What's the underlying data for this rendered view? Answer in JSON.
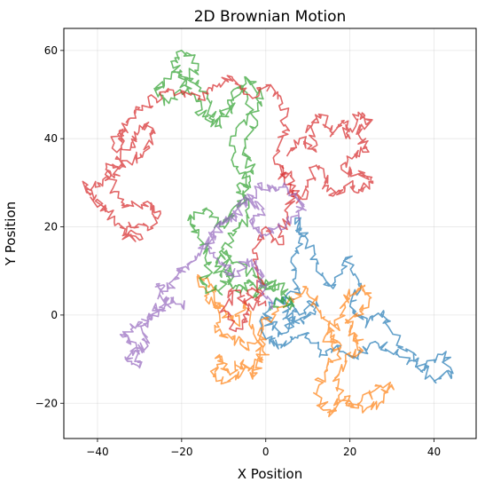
{
  "chart_data": {
    "type": "line",
    "title": "2D Brownian Motion",
    "xlabel": "X Position",
    "ylabel": "Y Position",
    "xlim": [
      -48,
      50
    ],
    "ylim": [
      -28,
      65
    ],
    "xticks": [
      -40,
      -20,
      0,
      20,
      40
    ],
    "yticks": [
      -20,
      0,
      20,
      40,
      60
    ],
    "xtick_labels": [
      "−40",
      "−20",
      "0",
      "20",
      "40"
    ],
    "ytick_labels": [
      "−20",
      "0",
      "20",
      "40",
      "60"
    ],
    "grid": true,
    "legend": "none",
    "series": [
      {
        "color": "#1f77b4",
        "alpha": 0.7,
        "waypoints": [
          [
            0,
            0
          ],
          [
            3,
            -4
          ],
          [
            6,
            -2
          ],
          [
            4,
            3
          ],
          [
            8,
            6
          ],
          [
            6,
            12
          ],
          [
            9,
            18
          ],
          [
            7,
            22
          ],
          [
            10,
            17
          ],
          [
            12,
            10
          ],
          [
            16,
            6
          ],
          [
            19,
            13
          ],
          [
            22,
            7
          ],
          [
            20,
            2
          ],
          [
            24,
            -2
          ],
          [
            28,
            1
          ],
          [
            30,
            -4
          ],
          [
            34,
            -8
          ],
          [
            38,
            -12
          ],
          [
            42,
            -9
          ],
          [
            44,
            -13
          ],
          [
            40,
            -15
          ],
          [
            36,
            -11
          ],
          [
            31,
            -9
          ],
          [
            26,
            -6
          ],
          [
            22,
            -10
          ],
          [
            17,
            -7
          ],
          [
            13,
            -9
          ],
          [
            10,
            -4
          ],
          [
            6,
            -6
          ],
          [
            2,
            -7
          ],
          [
            -1,
            -4
          ],
          [
            1,
            2
          ],
          [
            5,
            4
          ],
          [
            8,
            0
          ],
          [
            12,
            3
          ],
          [
            9,
            -2
          ],
          [
            4,
            -1
          ]
        ]
      },
      {
        "color": "#ff7f0e",
        "alpha": 0.7,
        "waypoints": [
          [
            -1,
            -3
          ],
          [
            -4,
            -8
          ],
          [
            -8,
            -5
          ],
          [
            -12,
            -4
          ],
          [
            -10,
            2
          ],
          [
            -14,
            4
          ],
          [
            -16,
            9
          ],
          [
            -13,
            7
          ],
          [
            -11,
            2
          ],
          [
            -7,
            -2
          ],
          [
            -5,
            3
          ],
          [
            -2,
            -6
          ],
          [
            -1,
            -10
          ],
          [
            -3,
            -14
          ],
          [
            -6,
            -11
          ],
          [
            -9,
            -13
          ],
          [
            -11,
            -9
          ],
          [
            -12,
            -14
          ],
          [
            -9,
            -15
          ],
          [
            -4,
            -12
          ],
          [
            0,
            -9
          ],
          [
            -1,
            -3
          ],
          [
            3,
            1
          ],
          [
            6,
            4
          ],
          [
            10,
            6
          ],
          [
            13,
            1
          ],
          [
            15,
            -4
          ],
          [
            17,
            -9
          ],
          [
            14,
            -13
          ],
          [
            12,
            -18
          ],
          [
            15,
            -23
          ],
          [
            17,
            -19
          ],
          [
            22,
            -20
          ],
          [
            26,
            -17
          ],
          [
            30,
            -16
          ],
          [
            27,
            -20
          ],
          [
            23,
            -22
          ],
          [
            19,
            -20
          ],
          [
            16,
            -15
          ],
          [
            19,
            -10
          ],
          [
            23,
            -8
          ],
          [
            21,
            -4
          ],
          [
            19,
            -1
          ],
          [
            23,
            1
          ],
          [
            25,
            5
          ],
          [
            22,
            6
          ],
          [
            19,
            3
          ],
          [
            17,
            -2
          ],
          [
            14,
            -5
          ],
          [
            18,
            -7
          ]
        ]
      },
      {
        "color": "#2ca02c",
        "alpha": 0.7,
        "waypoints": [
          [
            1,
            1
          ],
          [
            4,
            4
          ],
          [
            6,
            2
          ],
          [
            3,
            7
          ],
          [
            0,
            6
          ],
          [
            -3,
            9
          ],
          [
            -7,
            12
          ],
          [
            -10,
            14
          ],
          [
            -8,
            9
          ],
          [
            -11,
            5
          ],
          [
            -15,
            7
          ],
          [
            -13,
            12
          ],
          [
            -16,
            18
          ],
          [
            -18,
            22
          ],
          [
            -14,
            24
          ],
          [
            -11,
            20
          ],
          [
            -8,
            23
          ],
          [
            -5,
            26
          ],
          [
            -4,
            30
          ],
          [
            -8,
            35
          ],
          [
            -7,
            42
          ],
          [
            -3,
            46
          ],
          [
            -1,
            50
          ],
          [
            -5,
            54
          ],
          [
            -9,
            48
          ],
          [
            -12,
            44
          ],
          [
            -14,
            49
          ],
          [
            -18,
            53
          ],
          [
            -22,
            56
          ],
          [
            -20,
            60
          ],
          [
            -16,
            57
          ],
          [
            -19,
            52
          ],
          [
            -23,
            48
          ],
          [
            -26,
            51
          ],
          [
            -21,
            55
          ],
          [
            -17,
            50
          ],
          [
            -15,
            45
          ],
          [
            -11,
            43
          ],
          [
            -8,
            47
          ],
          [
            -6,
            52
          ],
          [
            -2,
            44
          ],
          [
            -5,
            38
          ],
          [
            -3,
            32
          ],
          [
            -6,
            28
          ],
          [
            -4,
            22
          ],
          [
            -7,
            19
          ],
          [
            -10,
            15
          ],
          [
            -12,
            11
          ],
          [
            -9,
            8
          ],
          [
            -6,
            5
          ],
          [
            -4,
            8
          ],
          [
            -2,
            4
          ],
          [
            0,
            8
          ],
          [
            3,
            6
          ]
        ]
      },
      {
        "color": "#d62728",
        "alpha": 0.7,
        "waypoints": [
          [
            0,
            2
          ],
          [
            -3,
            6
          ],
          [
            -5,
            3
          ],
          [
            -8,
            6
          ],
          [
            -10,
            1
          ],
          [
            -7,
            -3
          ],
          [
            -4,
            0
          ],
          [
            -2,
            3
          ],
          [
            -1,
            8
          ],
          [
            -3,
            14
          ],
          [
            0,
            20
          ],
          [
            3,
            16
          ],
          [
            5,
            22
          ],
          [
            6,
            27
          ],
          [
            4,
            32
          ],
          [
            2,
            36
          ],
          [
            5,
            42
          ],
          [
            4,
            48
          ],
          [
            1,
            52
          ],
          [
            -4,
            50
          ],
          [
            -8,
            54
          ],
          [
            -12,
            52
          ],
          [
            -16,
            49
          ],
          [
            -22,
            51
          ],
          [
            -26,
            49
          ],
          [
            -30,
            47
          ],
          [
            -33,
            43
          ],
          [
            -35,
            40
          ],
          [
            -32,
            38
          ],
          [
            -30,
            43
          ],
          [
            -27,
            42
          ],
          [
            -29,
            37
          ],
          [
            -33,
            35
          ],
          [
            -36,
            32
          ],
          [
            -40,
            30
          ],
          [
            -43,
            29
          ],
          [
            -41,
            26
          ],
          [
            -38,
            24
          ],
          [
            -36,
            21
          ],
          [
            -34,
            18
          ],
          [
            -30,
            17
          ],
          [
            -33,
            20
          ],
          [
            -28,
            20
          ],
          [
            -25,
            23
          ],
          [
            -27,
            25
          ],
          [
            -33,
            25
          ],
          [
            -36,
            28
          ],
          [
            -38,
            33
          ],
          [
            -34,
            34
          ],
          [
            -36,
            39
          ],
          [
            -33,
            42
          ]
        ]
      },
      {
        "color": "#d62728",
        "alpha": 0.7,
        "waypoints": [
          [
            5,
            36
          ],
          [
            8,
            40
          ],
          [
            12,
            37
          ],
          [
            10,
            43
          ],
          [
            13,
            45
          ],
          [
            16,
            41
          ],
          [
            18,
            44
          ],
          [
            20,
            40
          ],
          [
            22,
            46
          ],
          [
            25,
            44
          ],
          [
            22,
            41
          ],
          [
            24,
            38
          ],
          [
            21,
            36
          ],
          [
            18,
            33
          ],
          [
            22,
            32
          ],
          [
            25,
            30
          ],
          [
            23,
            28
          ],
          [
            20,
            30
          ],
          [
            16,
            27
          ],
          [
            14,
            30
          ],
          [
            12,
            34
          ],
          [
            10,
            29
          ],
          [
            8,
            26
          ],
          [
            6,
            30
          ],
          [
            4,
            34
          ]
        ]
      },
      {
        "color": "#9467bd",
        "alpha": 0.7,
        "waypoints": [
          [
            1,
            2
          ],
          [
            -1,
            7
          ],
          [
            -2,
            11
          ],
          [
            -5,
            12
          ],
          [
            -8,
            9
          ],
          [
            -11,
            12
          ],
          [
            -14,
            16
          ],
          [
            -12,
            20
          ],
          [
            -9,
            22
          ],
          [
            -6,
            25
          ],
          [
            -3,
            27
          ],
          [
            -1,
            30
          ],
          [
            1,
            28
          ],
          [
            4,
            29
          ],
          [
            7,
            27
          ],
          [
            9,
            24
          ],
          [
            6,
            22
          ],
          [
            3,
            20
          ],
          [
            0,
            18
          ],
          [
            -3,
            20
          ],
          [
            -1,
            24
          ],
          [
            -4,
            26
          ],
          [
            -7,
            23
          ],
          [
            -10,
            21
          ],
          [
            -13,
            18
          ],
          [
            -16,
            14
          ],
          [
            -19,
            11
          ],
          [
            -21,
            9
          ],
          [
            -23,
            6
          ],
          [
            -26,
            7
          ],
          [
            -24,
            3
          ],
          [
            -26,
            1
          ],
          [
            -29,
            -2
          ],
          [
            -28,
            -7
          ],
          [
            -31,
            -8
          ],
          [
            -33,
            -10
          ],
          [
            -30,
            -12
          ],
          [
            -32,
            -6
          ],
          [
            -34,
            -5
          ],
          [
            -31,
            -3
          ],
          [
            -27,
            0
          ],
          [
            -24,
            2
          ],
          [
            -22,
            4
          ],
          [
            -20,
            2
          ]
        ]
      }
    ]
  }
}
